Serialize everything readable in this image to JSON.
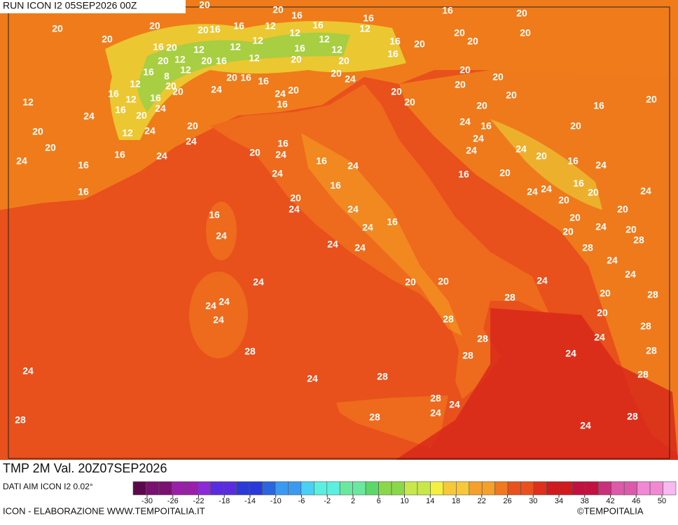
{
  "header": {
    "run": "RUN ICON I2 05SEP2026 00Z"
  },
  "map": {
    "title": "TMP 2M Val. 20Z07SEP2026",
    "contour_labels": [
      20,
      20,
      16,
      16,
      16,
      20,
      20,
      20,
      20,
      20,
      16,
      16,
      12,
      12,
      16,
      12,
      16,
      20,
      20,
      20,
      20,
      16,
      20,
      12,
      12,
      12,
      16,
      12,
      12,
      16,
      20,
      12,
      12,
      20,
      16,
      20,
      20,
      16,
      12,
      8,
      20,
      16,
      16,
      20,
      24,
      20,
      20,
      12,
      20,
      24,
      24,
      20,
      20,
      16,
      12,
      16,
      20,
      20,
      20,
      12,
      16,
      20,
      24,
      20,
      20,
      16,
      20,
      24,
      16,
      12,
      24,
      20,
      24,
      16,
      20,
      20,
      24,
      16,
      24,
      20,
      16,
      24,
      20,
      24,
      24,
      24,
      20,
      24,
      16,
      16,
      24,
      16,
      24,
      24,
      20,
      16,
      16,
      16,
      24,
      24,
      16,
      20,
      24,
      20,
      24,
      20,
      20,
      16,
      24,
      16,
      20,
      24,
      24,
      24,
      20,
      20,
      28,
      24,
      24,
      28,
      24,
      24,
      24,
      20,
      20,
      24,
      24,
      24,
      28,
      20,
      28,
      24,
      28,
      20,
      28,
      28,
      28,
      28,
      24,
      28,
      24,
      24,
      24,
      28,
      28,
      28,
      24,
      24,
      28,
      28,
      24,
      28
    ]
  },
  "colorbar": {
    "source": "DATI AIM ICON I2 0.02°",
    "ticks": [
      -30,
      -26,
      -22,
      -18,
      -14,
      -10,
      -6,
      -2,
      2,
      6,
      10,
      14,
      18,
      22,
      26,
      30,
      34,
      38,
      42,
      46,
      50
    ]
  },
  "footer": {
    "credit": "ICON - ELABORAZIONE WWW.TEMPOITALIA.IT",
    "brand": "©TEMPOITALIA"
  }
}
